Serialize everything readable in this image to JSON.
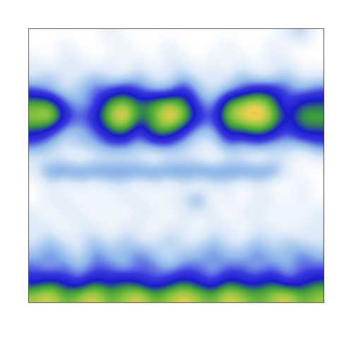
{
  "chart_data": {
    "type": "heatmap",
    "tick_labels": false,
    "color_range": [
      0,
      9
    ],
    "cells": [
      [
        0,
        0,
        0,
        0,
        0,
        1,
        0,
        0,
        0,
        0,
        0,
        0,
        0,
        0,
        0,
        0,
        0,
        1,
        2,
        0
      ],
      [
        0,
        0,
        1,
        0,
        0,
        0,
        1,
        0,
        0,
        1,
        0,
        0,
        0,
        1,
        0,
        0,
        1,
        0,
        0,
        0
      ],
      [
        1,
        0,
        1,
        1,
        0,
        1,
        0,
        1,
        0,
        1,
        1,
        0,
        1,
        0,
        1,
        0,
        1,
        1,
        0,
        0
      ],
      [
        1,
        2,
        1,
        1,
        2,
        1,
        1,
        2,
        1,
        1,
        2,
        1,
        1,
        1,
        2,
        1,
        1,
        2,
        1,
        1
      ],
      [
        3,
        2,
        1,
        2,
        3,
        3,
        4,
        3,
        2,
        2,
        4,
        2,
        1,
        2,
        3,
        4,
        4,
        3,
        2,
        3
      ],
      [
        6,
        6,
        3,
        2,
        3,
        6,
        7,
        5,
        6,
        7,
        6,
        3,
        2,
        6,
        7,
        8,
        6,
        3,
        5,
        5
      ],
      [
        7,
        8,
        4,
        3,
        4,
        7,
        9,
        5,
        6,
        9,
        7,
        4,
        3,
        7,
        8,
        9,
        7,
        4,
        6,
        6
      ],
      [
        5,
        4,
        2,
        2,
        3,
        5,
        6,
        3,
        6,
        6,
        4,
        2,
        2,
        5,
        5,
        6,
        5,
        3,
        5,
        5
      ],
      [
        3,
        2,
        1,
        2,
        2,
        3,
        3,
        2,
        3,
        3,
        2,
        1,
        1,
        3,
        2,
        3,
        2,
        2,
        2,
        3
      ],
      [
        1,
        1,
        1,
        0,
        1,
        1,
        1,
        1,
        0,
        1,
        1,
        1,
        0,
        1,
        1,
        0,
        1,
        1,
        0,
        1
      ],
      [
        1,
        3,
        3,
        3,
        3,
        3,
        3,
        3,
        3,
        3,
        3,
        3,
        3,
        3,
        3,
        3,
        3,
        1,
        0,
        0
      ],
      [
        0,
        1,
        0,
        1,
        0,
        1,
        1,
        0,
        1,
        0,
        1,
        0,
        1,
        1,
        0,
        1,
        0,
        0,
        1,
        0
      ],
      [
        0,
        1,
        1,
        0,
        1,
        0,
        1,
        1,
        0,
        1,
        1,
        3,
        0,
        1,
        0,
        1,
        1,
        0,
        1,
        0
      ],
      [
        1,
        0,
        1,
        1,
        0,
        1,
        0,
        1,
        1,
        0,
        1,
        1,
        1,
        0,
        1,
        1,
        0,
        1,
        0,
        1
      ],
      [
        1,
        1,
        0,
        1,
        1,
        0,
        1,
        1,
        0,
        1,
        1,
        0,
        1,
        1,
        0,
        1,
        1,
        0,
        1,
        1
      ],
      [
        1,
        2,
        1,
        1,
        2,
        1,
        2,
        1,
        1,
        2,
        1,
        1,
        2,
        1,
        1,
        2,
        1,
        2,
        1,
        1
      ],
      [
        2,
        3,
        2,
        1,
        3,
        2,
        2,
        3,
        2,
        1,
        2,
        2,
        3,
        2,
        2,
        3,
        2,
        2,
        3,
        2
      ],
      [
        3,
        2,
        3,
        2,
        3,
        3,
        2,
        3,
        3,
        2,
        3,
        3,
        2,
        3,
        3,
        2,
        3,
        2,
        3,
        3
      ],
      [
        4,
        5,
        4,
        3,
        5,
        4,
        5,
        4,
        3,
        4,
        5,
        4,
        3,
        5,
        4,
        4,
        5,
        3,
        4,
        5
      ],
      [
        7,
        8,
        6,
        7,
        8,
        6,
        7,
        8,
        6,
        7,
        8,
        7,
        6,
        8,
        7,
        6,
        7,
        8,
        6,
        7
      ]
    ]
  }
}
